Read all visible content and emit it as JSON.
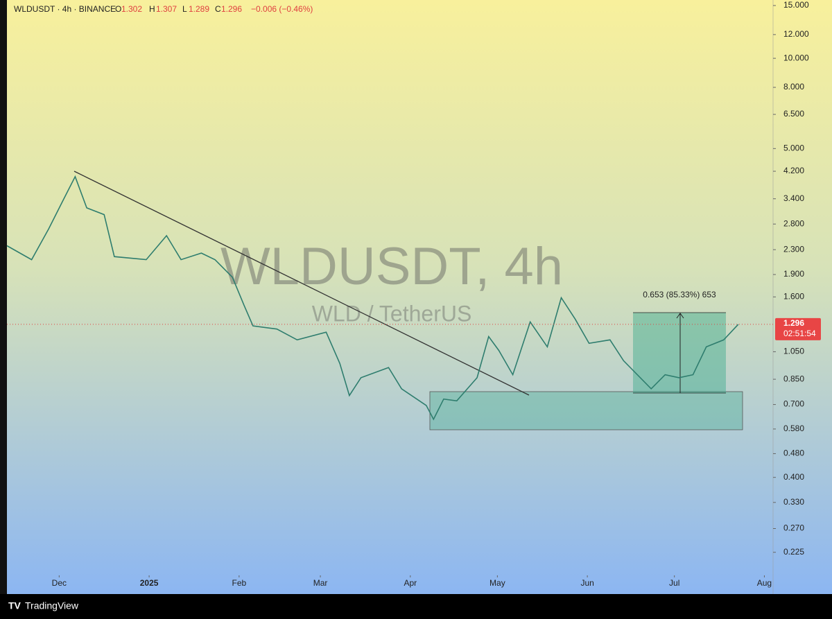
{
  "header": {
    "symbol": "WLDUSDT · 4h · BINANCE",
    "ohlc": [
      {
        "label": "O",
        "value": "1.302"
      },
      {
        "label": "H",
        "value": "1.307"
      },
      {
        "label": "L",
        "value": "1.289"
      },
      {
        "label": "C",
        "value": "1.296"
      }
    ],
    "change": "−0.006 (−0.46%)"
  },
  "watermark": {
    "title": "WLDUSDT, 4h",
    "subtitle": "WLD / TetherUS"
  },
  "measure_label": "0.653 (85.33%) 653",
  "countdown": "02:51:54",
  "footer": "TradingView",
  "chart_data": {
    "type": "line",
    "log_scale": true,
    "x": [
      -18,
      -9.5,
      -3.6,
      1.2,
      5.5,
      9.5,
      15.5,
      19,
      30,
      37,
      42,
      49,
      53.7,
      59.7,
      63.7,
      66.8,
      75,
      82,
      92,
      96.7,
      100,
      104,
      113.5,
      118,
      126.5,
      129,
      132.5,
      137,
      144,
      148,
      151.5,
      156.3,
      162.3,
      168.2,
      173,
      177.8,
      182.6,
      189.8,
      194.5,
      204,
      208.8,
      213.6,
      218.4,
      223,
      229,
      234
    ],
    "series": [
      {
        "name": "WLDUSDT",
        "color": "#2e7d6e",
        "values": [
          2.37,
          2.13,
          2.7,
          3.34,
          4.03,
          3.17,
          3.01,
          2.18,
          2.13,
          2.56,
          2.13,
          2.24,
          2.13,
          1.86,
          1.5,
          1.28,
          1.25,
          1.15,
          1.22,
          0.96,
          0.75,
          0.86,
          0.93,
          0.79,
          0.695,
          0.625,
          0.73,
          0.72,
          0.86,
          1.18,
          1.06,
          0.88,
          1.32,
          1.09,
          1.59,
          1.35,
          1.12,
          1.15,
          0.98,
          0.79,
          0.88,
          0.86,
          0.88,
          1.09,
          1.15,
          1.296
        ],
        "value_labels": [
          null,
          null,
          null,
          null,
          null,
          null,
          null,
          null,
          null,
          null,
          null,
          null,
          null,
          null,
          null,
          null,
          null,
          null,
          null,
          null,
          null,
          null,
          null,
          null,
          null,
          null,
          null,
          null,
          null,
          null,
          null,
          null,
          null,
          null,
          null,
          null,
          null,
          null,
          null,
          null,
          null,
          null,
          null,
          null,
          null,
          "1.296"
        ]
      }
    ],
    "xlim": [
      -18,
      246
    ],
    "xticks": [
      {
        "value": 0,
        "label": "Dec"
      },
      {
        "value": 31,
        "label": "2025"
      },
      {
        "value": 62,
        "label": "Feb"
      },
      {
        "value": 90,
        "label": "Mar"
      },
      {
        "value": 121,
        "label": "Apr"
      },
      {
        "value": 151,
        "label": "May"
      },
      {
        "value": 182,
        "label": "Jun"
      },
      {
        "value": 212,
        "label": "Jul"
      },
      {
        "value": 243,
        "label": "Aug"
      }
    ],
    "ylim": [
      0.165,
      15.65
    ],
    "yticks": [
      {
        "value": 15,
        "label": "15.000"
      },
      {
        "value": 12,
        "label": "12.000"
      },
      {
        "value": 10,
        "label": "10.000"
      },
      {
        "value": 8,
        "label": "8.000"
      },
      {
        "value": 6.5,
        "label": "6.500"
      },
      {
        "value": 5,
        "label": "5.000"
      },
      {
        "value": 4.2,
        "label": "4.200"
      },
      {
        "value": 3.4,
        "label": "3.400"
      },
      {
        "value": 2.8,
        "label": "2.800"
      },
      {
        "value": 2.3,
        "label": "2.300"
      },
      {
        "value": 1.9,
        "label": "1.900"
      },
      {
        "value": 1.6,
        "label": "1.600"
      },
      {
        "value": 1.05,
        "label": "1.050"
      },
      {
        "value": 0.85,
        "label": "0.850"
      },
      {
        "value": 0.7,
        "label": "0.700"
      },
      {
        "value": 0.58,
        "label": "0.580"
      },
      {
        "value": 0.48,
        "label": "0.480"
      },
      {
        "value": 0.4,
        "label": "0.400"
      },
      {
        "value": 0.33,
        "label": "0.330"
      },
      {
        "value": 0.27,
        "label": "0.270"
      },
      {
        "value": 0.225,
        "label": "0.225"
      }
    ],
    "grid": false
  }
}
